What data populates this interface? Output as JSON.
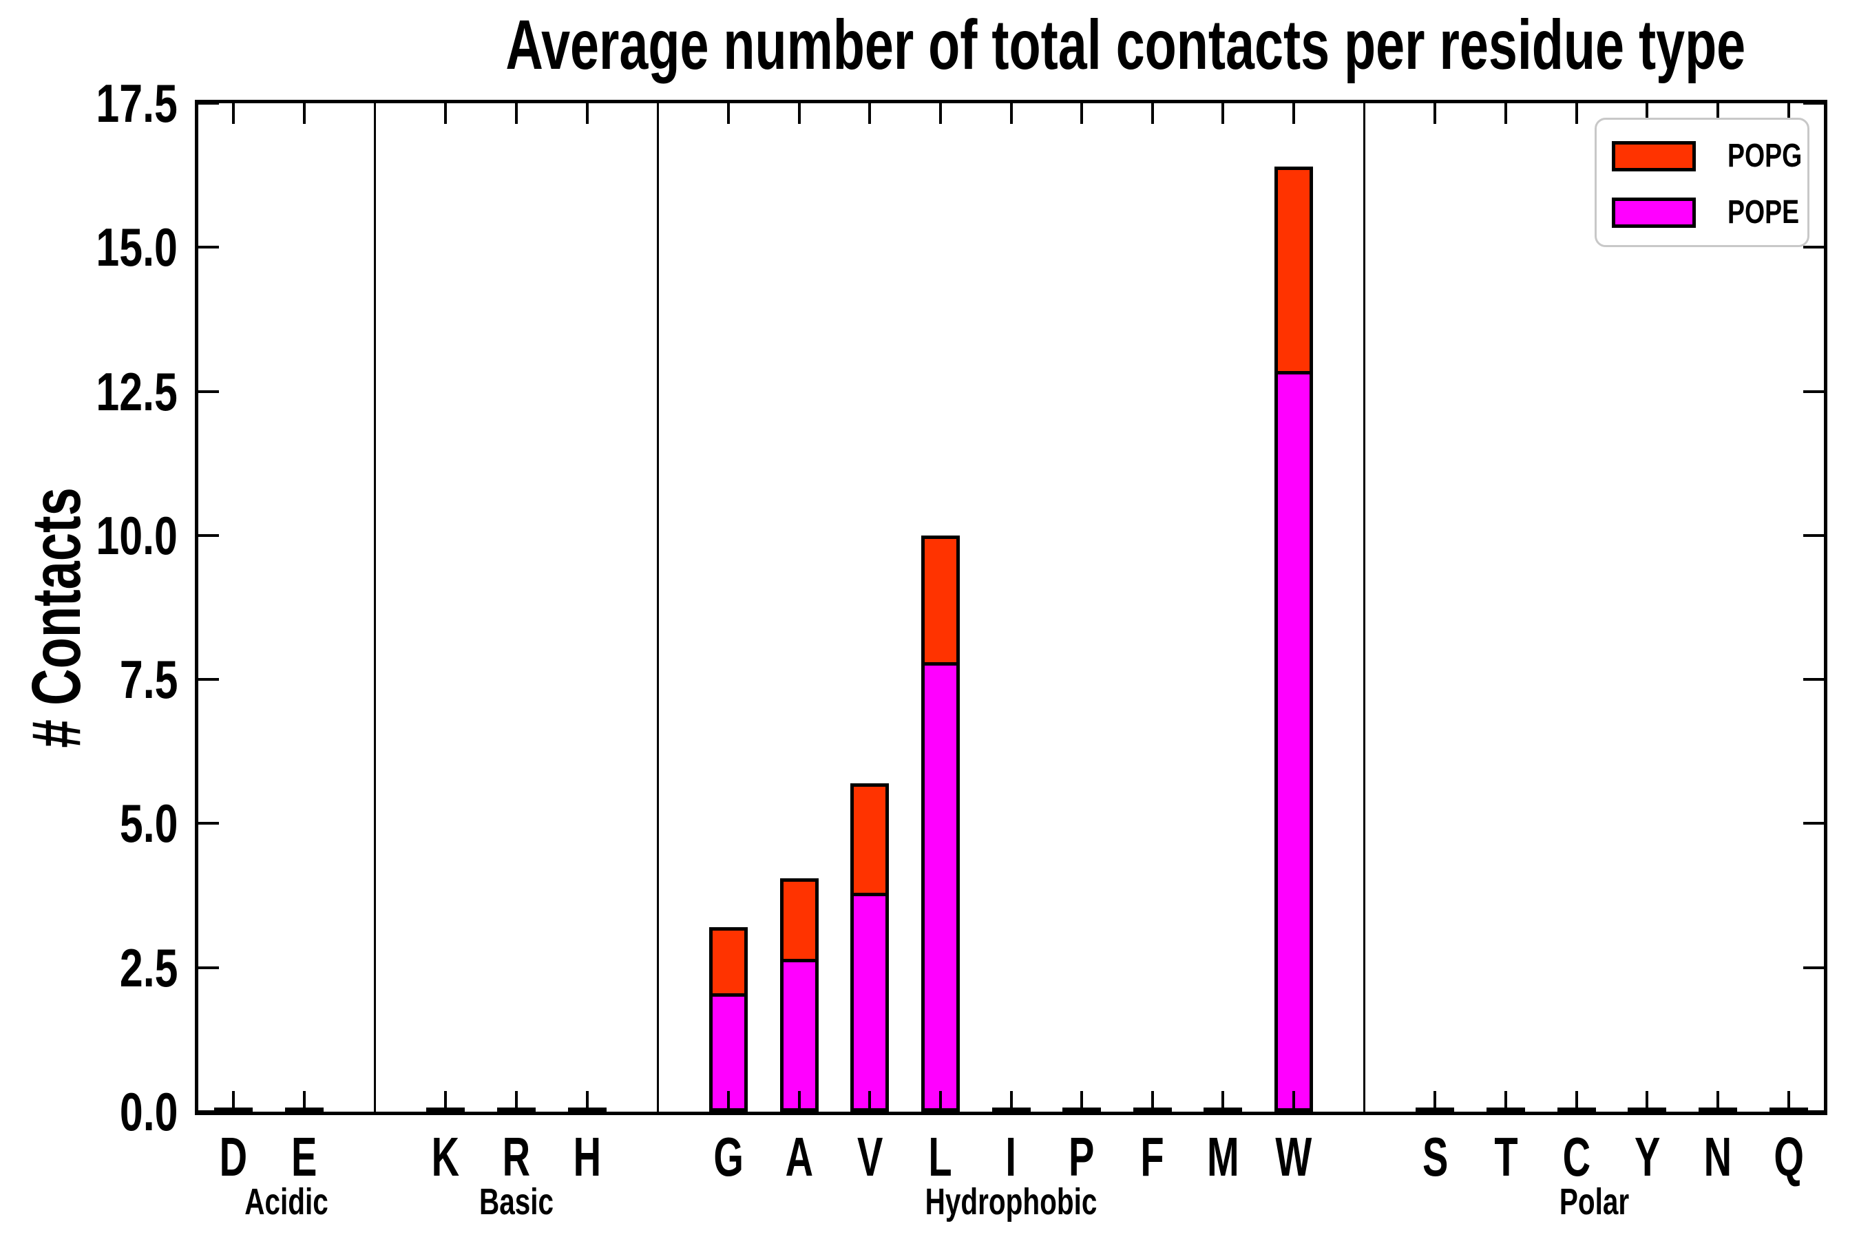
{
  "title": "Average number of total contacts per residue type",
  "ylabel": "# Contacts",
  "legend": {
    "position": "upper right",
    "items": [
      {
        "label": "POPG",
        "color": "#ff3300"
      },
      {
        "label": "POPE",
        "color": "#ff00ff"
      }
    ]
  },
  "chart_data": {
    "type": "bar",
    "stacked": true,
    "title": "Average number of total contacts per residue type",
    "xlabel": "",
    "ylabel": "# Contacts",
    "ylim": [
      0,
      17.5
    ],
    "yticks": [
      "0.0",
      "2.5",
      "5.0",
      "7.5",
      "10.0",
      "12.5",
      "15.0",
      "17.5"
    ],
    "grid": false,
    "series": [
      {
        "name": "POPG",
        "color": "#ff3300",
        "stack_order": "top"
      },
      {
        "name": "POPE",
        "color": "#ff00ff",
        "stack_order": "bottom"
      }
    ],
    "groups": [
      {
        "label": "Acidic",
        "bars": [
          {
            "residue": "D",
            "POPE": 0.02,
            "POPG": 0.02
          },
          {
            "residue": "E",
            "POPE": 0.02,
            "POPG": 0.02
          }
        ]
      },
      {
        "label": "Basic",
        "bars": [
          {
            "residue": "K",
            "POPE": 0.02,
            "POPG": 0.02
          },
          {
            "residue": "R",
            "POPE": 0.02,
            "POPG": 0.02
          },
          {
            "residue": "H",
            "POPE": 0.02,
            "POPG": 0.02
          }
        ]
      },
      {
        "label": "Hydrophobic",
        "bars": [
          {
            "residue": "G",
            "POPE": 2.05,
            "POPG": 1.15
          },
          {
            "residue": "A",
            "POPE": 2.65,
            "POPG": 1.4
          },
          {
            "residue": "V",
            "POPE": 3.8,
            "POPG": 1.9
          },
          {
            "residue": "L",
            "POPE": 7.8,
            "POPG": 2.2
          },
          {
            "residue": "I",
            "POPE": 0.02,
            "POPG": 0.02
          },
          {
            "residue": "P",
            "POPE": 0.02,
            "POPG": 0.02
          },
          {
            "residue": "F",
            "POPE": 0.02,
            "POPG": 0.02
          },
          {
            "residue": "M",
            "POPE": 0.02,
            "POPG": 0.02
          },
          {
            "residue": "W",
            "POPE": 12.85,
            "POPG": 3.55
          }
        ]
      },
      {
        "label": "Polar",
        "bars": [
          {
            "residue": "S",
            "POPE": 0.02,
            "POPG": 0.02
          },
          {
            "residue": "T",
            "POPE": 0.02,
            "POPG": 0.02
          },
          {
            "residue": "C",
            "POPE": 0.02,
            "POPG": 0.02
          },
          {
            "residue": "Y",
            "POPE": 0.02,
            "POPG": 0.02
          },
          {
            "residue": "N",
            "POPE": 0.02,
            "POPG": 0.02
          },
          {
            "residue": "Q",
            "POPE": 0.02,
            "POPG": 0.02
          }
        ]
      }
    ]
  }
}
